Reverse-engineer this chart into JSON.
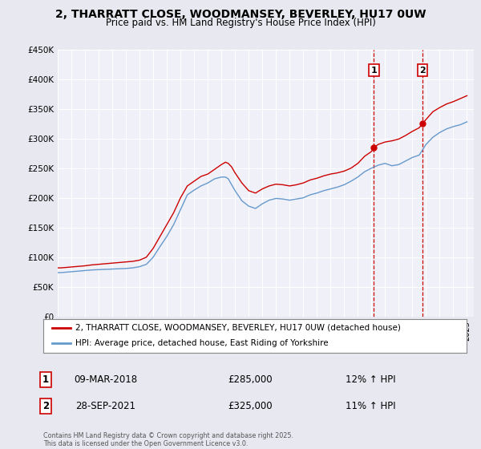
{
  "title": "2, THARRATT CLOSE, WOODMANSEY, BEVERLEY, HU17 0UW",
  "subtitle": "Price paid vs. HM Land Registry's House Price Index (HPI)",
  "ylabel_ticks": [
    "£0",
    "£50K",
    "£100K",
    "£150K",
    "£200K",
    "£250K",
    "£300K",
    "£350K",
    "£400K",
    "£450K"
  ],
  "ylim": [
    0,
    450000
  ],
  "xlim_start": 1995.0,
  "xlim_end": 2025.5,
  "red_color": "#cc0000",
  "blue_color": "#6699cc",
  "background_color": "#e8e8f0",
  "plot_bg_color": "#f0f0f8",
  "grid_color": "#ffffff",
  "legend1": "2, THARRATT CLOSE, WOODMANSEY, BEVERLEY, HU17 0UW (detached house)",
  "legend2": "HPI: Average price, detached house, East Riding of Yorkshire",
  "marker1_date": 2018.18,
  "marker1_price": 285000,
  "marker2_date": 2021.74,
  "marker2_price": 325000,
  "annotation1": "1",
  "annotation2": "2",
  "sale1_label": "09-MAR-2018",
  "sale1_price": "£285,000",
  "sale1_hpi": "12% ↑ HPI",
  "sale2_label": "28-SEP-2021",
  "sale2_price": "£325,000",
  "sale2_hpi": "11% ↑ HPI",
  "footer": "Contains HM Land Registry data © Crown copyright and database right 2025.\nThis data is licensed under the Open Government Licence v3.0.",
  "red_line_data": {
    "years": [
      1995.0,
      1995.25,
      1995.5,
      1995.75,
      1996.0,
      1996.25,
      1996.5,
      1996.75,
      1997.0,
      1997.5,
      1998.0,
      1998.5,
      1999.0,
      1999.5,
      2000.0,
      2000.5,
      2001.0,
      2001.5,
      2002.0,
      2002.5,
      2003.0,
      2003.5,
      2004.0,
      2004.5,
      2005.0,
      2005.5,
      2006.0,
      2006.5,
      2007.0,
      2007.3,
      2007.5,
      2007.75,
      2008.0,
      2008.5,
      2009.0,
      2009.5,
      2010.0,
      2010.5,
      2011.0,
      2011.5,
      2012.0,
      2012.5,
      2013.0,
      2013.5,
      2014.0,
      2014.5,
      2015.0,
      2015.5,
      2016.0,
      2016.5,
      2017.0,
      2017.5,
      2018.0,
      2018.18,
      2018.5,
      2019.0,
      2019.5,
      2020.0,
      2020.5,
      2021.0,
      2021.5,
      2021.74,
      2022.0,
      2022.5,
      2023.0,
      2023.5,
      2024.0,
      2024.5,
      2025.0
    ],
    "values": [
      82000,
      82000,
      82500,
      83000,
      83500,
      84000,
      84500,
      85000,
      85500,
      87000,
      88000,
      89000,
      90000,
      91000,
      92000,
      93000,
      95000,
      100000,
      115000,
      135000,
      155000,
      175000,
      200000,
      220000,
      228000,
      236000,
      240000,
      248000,
      256000,
      260000,
      258000,
      252000,
      242000,
      225000,
      212000,
      208000,
      215000,
      220000,
      223000,
      222000,
      220000,
      222000,
      225000,
      230000,
      233000,
      237000,
      240000,
      242000,
      245000,
      250000,
      258000,
      270000,
      278000,
      285000,
      290000,
      294000,
      296000,
      299000,
      305000,
      312000,
      318000,
      325000,
      332000,
      345000,
      352000,
      358000,
      362000,
      367000,
      372000
    ]
  },
  "blue_line_data": {
    "years": [
      1995.0,
      1995.25,
      1995.5,
      1995.75,
      1996.0,
      1996.25,
      1996.5,
      1996.75,
      1997.0,
      1997.5,
      1998.0,
      1998.5,
      1999.0,
      1999.5,
      2000.0,
      2000.5,
      2001.0,
      2001.5,
      2002.0,
      2002.5,
      2003.0,
      2003.5,
      2004.0,
      2004.5,
      2005.0,
      2005.5,
      2006.0,
      2006.5,
      2007.0,
      2007.3,
      2007.5,
      2007.75,
      2008.0,
      2008.5,
      2009.0,
      2009.5,
      2010.0,
      2010.5,
      2011.0,
      2011.5,
      2012.0,
      2012.5,
      2013.0,
      2013.5,
      2014.0,
      2014.5,
      2015.0,
      2015.5,
      2016.0,
      2016.5,
      2017.0,
      2017.5,
      2018.0,
      2018.5,
      2019.0,
      2019.5,
      2020.0,
      2020.5,
      2021.0,
      2021.5,
      2022.0,
      2022.5,
      2023.0,
      2023.5,
      2024.0,
      2024.5,
      2025.0
    ],
    "values": [
      74000,
      74000,
      74500,
      75000,
      75500,
      76000,
      76500,
      77000,
      77500,
      78500,
      79000,
      79500,
      80000,
      80500,
      81000,
      82000,
      84000,
      88000,
      100000,
      118000,
      135000,
      155000,
      180000,
      205000,
      213000,
      220000,
      225000,
      232000,
      235000,
      235000,
      232000,
      222000,
      212000,
      195000,
      186000,
      182000,
      190000,
      196000,
      199000,
      198000,
      196000,
      198000,
      200000,
      205000,
      208000,
      212000,
      215000,
      218000,
      222000,
      228000,
      235000,
      244000,
      250000,
      255000,
      258000,
      254000,
      256000,
      262000,
      268000,
      272000,
      290000,
      302000,
      310000,
      316000,
      320000,
      323000,
      328000
    ]
  }
}
